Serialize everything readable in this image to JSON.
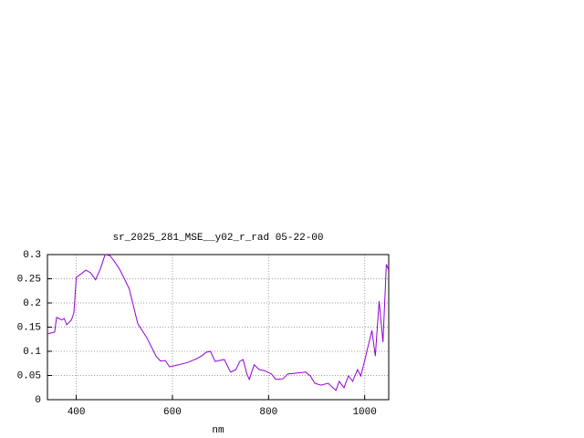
{
  "chart_data": {
    "type": "line",
    "title": "sr_2025_281_MSE__y02_r_rad 05-22-00",
    "xlabel": "nm",
    "x": [
      340,
      355,
      359,
      370,
      375,
      380,
      390,
      395,
      400,
      410,
      420,
      430,
      440,
      450,
      460,
      470,
      480,
      490,
      500,
      510,
      528,
      547,
      566,
      575,
      585,
      594,
      613,
      632,
      651,
      660,
      670,
      679,
      689,
      708,
      721,
      732,
      740,
      747,
      755,
      760,
      770,
      781,
      792,
      806,
      815,
      830,
      840,
      858,
      877,
      887,
      896,
      909,
      924,
      940,
      947,
      957,
      966,
      975,
      985,
      992,
      1000,
      1007,
      1015,
      1022,
      1030,
      1038,
      1045,
      1049
    ],
    "series": [
      {
        "color": "#9400d3",
        "values": [
          0.136,
          0.14,
          0.17,
          0.165,
          0.168,
          0.155,
          0.165,
          0.18,
          0.253,
          0.26,
          0.268,
          0.262,
          0.248,
          0.27,
          0.3,
          0.298,
          0.285,
          0.27,
          0.25,
          0.23,
          0.157,
          0.128,
          0.09,
          0.08,
          0.081,
          0.068,
          0.072,
          0.077,
          0.085,
          0.09,
          0.098,
          0.1,
          0.079,
          0.083,
          0.057,
          0.062,
          0.079,
          0.083,
          0.053,
          0.042,
          0.072,
          0.062,
          0.06,
          0.053,
          0.042,
          0.043,
          0.053,
          0.055,
          0.057,
          0.049,
          0.034,
          0.03,
          0.034,
          0.019,
          0.038,
          0.025,
          0.049,
          0.038,
          0.062,
          0.049,
          0.081,
          0.11,
          0.143,
          0.09,
          0.204,
          0.119,
          0.28,
          0.27
        ]
      }
    ],
    "xlim": [
      340,
      1050
    ],
    "xticks": [
      400,
      600,
      800,
      1000
    ],
    "ylim": [
      0,
      0.3
    ],
    "yticks": [
      0,
      0.05,
      0.1,
      0.15,
      0.2,
      0.25,
      0.3
    ],
    "grid": true
  }
}
